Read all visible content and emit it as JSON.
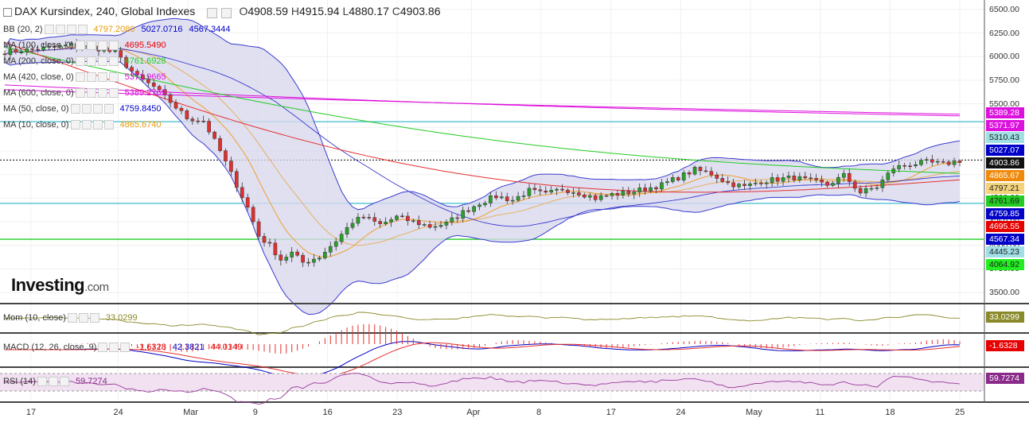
{
  "header": {
    "title": "DAX Kursindex, 240, Global Indexes",
    "ohlc": [
      {
        "k": "O",
        "v": "4908.59"
      },
      {
        "k": "H",
        "v": "4915.94"
      },
      {
        "k": "L",
        "v": "4880.17"
      },
      {
        "k": "C",
        "v": "4903.86"
      }
    ]
  },
  "legends": [
    {
      "label": "BB (20, 2)",
      "values": [
        {
          "text": "4797.2080",
          "color": "#e69c0c"
        },
        {
          "text": "5027.0716",
          "color": "#0000c8"
        },
        {
          "text": "4567.3444",
          "color": "#0000c8"
        }
      ]
    },
    {
      "label": "MA (100, close, 0)",
      "values": [
        {
          "text": "4695.5490",
          "color": "#e60000"
        }
      ]
    },
    {
      "label": "MA (200, close, 0)",
      "values": [
        {
          "text": "4761.6928",
          "color": "#22cc22"
        }
      ]
    },
    {
      "label": "MA (420, close, 0)",
      "values": [
        {
          "text": "5371.9665",
          "color": "#dd11dd"
        }
      ]
    },
    {
      "label": "MA (600, close, 0)",
      "values": [
        {
          "text": "5389.2769",
          "color": "#dd11dd"
        }
      ]
    },
    {
      "label": "MA (50, close, 0)",
      "values": [
        {
          "text": "4759.8450",
          "color": "#0000c8"
        }
      ]
    },
    {
      "label": "MA (10, close, 0)",
      "values": [
        {
          "text": "4865.6740",
          "color": "#e69c0c"
        }
      ]
    }
  ],
  "sub_legends": [
    {
      "label": "Mom (10, close)",
      "values": [
        {
          "text": "33.0299",
          "color": "#8a8a2a"
        }
      ]
    },
    {
      "label": "MACD (12, 26, close, 9)",
      "values": [
        {
          "text": "-1.6328",
          "color": "#e60000"
        },
        {
          "text": "42.3821",
          "color": "#0000c8"
        },
        {
          "text": "44.0149",
          "color": "#e60000"
        }
      ]
    },
    {
      "label": "RSI (14)",
      "values": [
        {
          "text": "59.7274",
          "color": "#8a2a8a"
        }
      ]
    }
  ],
  "watermark": {
    "brand": "Investing",
    "suffix": ".com"
  },
  "price_tags": [
    {
      "text": "5389.28",
      "bg": "#dd11dd",
      "fg": "#ffffff"
    },
    {
      "text": "5371.97",
      "bg": "#dd11dd",
      "fg": "#ffffff"
    },
    {
      "text": "5310.43",
      "bg": "#9fe0e6",
      "fg": "#222222"
    },
    {
      "text": "5027.07",
      "bg": "#0000c8",
      "fg": "#ffffff"
    },
    {
      "text": "4903.86",
      "bg": "#111111",
      "fg": "#ffffff"
    },
    {
      "text": "4865.67",
      "bg": "#f08a0a",
      "fg": "#ffffff"
    },
    {
      "text": "4797.21",
      "bg": "#f2d27a",
      "fg": "#222222"
    },
    {
      "text": "4761.69",
      "bg": "#22cc22",
      "fg": "#222222"
    },
    {
      "text": "4759.85",
      "bg": "#0000c8",
      "fg": "#ffffff"
    },
    {
      "text": "4695.55",
      "bg": "#e60000",
      "fg": "#ffffff"
    },
    {
      "text": "4567.34",
      "bg": "#0000c8",
      "fg": "#ffffff"
    },
    {
      "text": "4445.23",
      "bg": "#9fe0e6",
      "fg": "#222222"
    },
    {
      "text": "4064.92",
      "bg": "#22ee22",
      "fg": "#222222"
    }
  ],
  "sub_tags": [
    {
      "text": "33.0299",
      "bg": "#8a8a2a",
      "fg": "#ffffff"
    },
    {
      "text": "-1.6328",
      "bg": "#e60000",
      "fg": "#ffffff"
    },
    {
      "text": "59.7274",
      "bg": "#8a2a8a",
      "fg": "#ffffff"
    }
  ],
  "chart_data": {
    "type": "candlestick",
    "title": "DAX Kursindex, 240, Global Indexes",
    "y_ticks": [
      6500,
      6250,
      6000,
      5750,
      5500,
      5250,
      5000,
      4750,
      4500,
      4250,
      4000,
      3750,
      3500
    ],
    "ylim": [
      3400,
      6600
    ],
    "x_ticks": [
      "17",
      "24",
      "Mar",
      "9",
      "16",
      "23",
      "Apr",
      "8",
      "17",
      "24",
      "May",
      "11",
      "18",
      "25"
    ],
    "horizontal_lines": [
      {
        "value": 5310.43,
        "color": "#5fc6d4"
      },
      {
        "value": 4903.86,
        "color": "#000000",
        "style": "dotted"
      },
      {
        "value": 4445.23,
        "color": "#5fc6d4"
      },
      {
        "value": 4064.92,
        "color": "#22cc22"
      }
    ],
    "path_points": [
      [
        0,
        6050
      ],
      [
        6,
        6080
      ],
      [
        12,
        6120
      ],
      [
        16,
        6100
      ],
      [
        20,
        6040
      ],
      [
        24,
        5780
      ],
      [
        27,
        5680
      ],
      [
        30,
        5520
      ],
      [
        33,
        5350
      ],
      [
        36,
        5320
      ],
      [
        39,
        5000
      ],
      [
        41,
        4760
      ],
      [
        44,
        4400
      ],
      [
        46,
        4100
      ],
      [
        48,
        4000
      ],
      [
        50,
        3850
      ],
      [
        52,
        3920
      ],
      [
        54,
        3820
      ],
      [
        57,
        3880
      ],
      [
        60,
        4050
      ],
      [
        63,
        4250
      ],
      [
        65,
        4300
      ],
      [
        68,
        4220
      ],
      [
        71,
        4300
      ],
      [
        74,
        4250
      ],
      [
        77,
        4200
      ],
      [
        80,
        4230
      ],
      [
        83,
        4350
      ],
      [
        86,
        4450
      ],
      [
        89,
        4520
      ],
      [
        92,
        4480
      ],
      [
        95,
        4580
      ],
      [
        98,
        4540
      ],
      [
        101,
        4600
      ],
      [
        104,
        4560
      ],
      [
        107,
        4500
      ],
      [
        110,
        4540
      ],
      [
        113,
        4560
      ],
      [
        116,
        4600
      ],
      [
        119,
        4640
      ],
      [
        122,
        4720
      ],
      [
        125,
        4800
      ],
      [
        128,
        4760
      ],
      [
        131,
        4660
      ],
      [
        134,
        4620
      ],
      [
        137,
        4680
      ],
      [
        140,
        4700
      ],
      [
        143,
        4720
      ],
      [
        146,
        4680
      ],
      [
        149,
        4640
      ],
      [
        152,
        4740
      ],
      [
        155,
        4560
      ],
      [
        158,
        4620
      ],
      [
        161,
        4820
      ],
      [
        164,
        4860
      ],
      [
        167,
        4880
      ],
      [
        170,
        4860
      ],
      [
        173,
        4900
      ]
    ],
    "n_bars": 174,
    "ma_600": {
      "start": 5650,
      "end": 5389.28
    },
    "ma_420": {
      "start": 5700,
      "end": 5371.97
    },
    "ma_200": {
      "start": 6100,
      "end": 4761.69
    },
    "ma_100": {
      "start": 6150,
      "end": 4695.55
    },
    "bb": {
      "upper": 5027.07,
      "middle": 4797.21,
      "lower": 4567.34
    },
    "ma_10": 4865.67,
    "ma_50": 4759.85,
    "mom": 33.0299,
    "macd": {
      "hist": -1.6328,
      "macd": 42.3821,
      "signal": 44.0149
    },
    "rsi": 59.7274
  }
}
